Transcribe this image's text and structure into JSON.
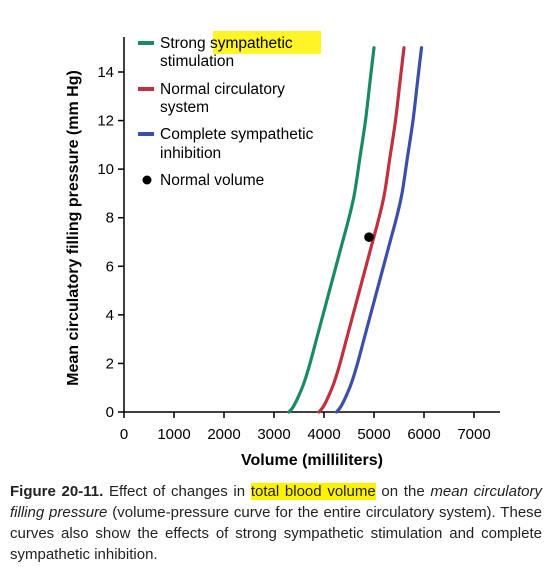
{
  "chart_data": {
    "type": "line",
    "xlabel": "Volume (milliliters)",
    "ylabel": "Mean circulatory filling pressure (mm Hg)",
    "xlim": [
      0,
      7000
    ],
    "ylim": [
      0,
      14
    ],
    "x_ticks": [
      0,
      1000,
      2000,
      3000,
      4000,
      5000,
      6000,
      7000
    ],
    "y_ticks": [
      0,
      2,
      4,
      6,
      8,
      10,
      12,
      14
    ],
    "grid": false,
    "legend_position": "top-left",
    "series": [
      {
        "name": "Strong sympathetic stimulation",
        "color": "#1a8a66",
        "x": [
          3300,
          3380,
          3480,
          3600,
          3720,
          3850,
          3980,
          4110,
          4240,
          4370,
          4500,
          4610,
          4720,
          4830,
          4920,
          5000
        ],
        "y": [
          0,
          0.2,
          0.6,
          1.2,
          2.0,
          3.0,
          4.0,
          5.0,
          6.0,
          7.0,
          8.0,
          9.0,
          10.5,
          12.0,
          13.6,
          15.0
        ]
      },
      {
        "name": "Normal circulatory system",
        "color": "#c0303f",
        "x": [
          3900,
          3980,
          4080,
          4200,
          4320,
          4450,
          4580,
          4710,
          4840,
          4970,
          5100,
          5210,
          5320,
          5430,
          5520,
          5600
        ],
        "y": [
          0,
          0.2,
          0.6,
          1.2,
          2.0,
          3.0,
          4.0,
          5.0,
          6.0,
          7.0,
          8.0,
          9.0,
          10.5,
          12.0,
          13.6,
          15.0
        ]
      },
      {
        "name": "Complete sympathetic inhibition",
        "color": "#3b4fa8",
        "x": [
          4250,
          4330,
          4430,
          4550,
          4670,
          4800,
          4930,
          5060,
          5190,
          5320,
          5450,
          5560,
          5670,
          5780,
          5870,
          5950
        ],
        "y": [
          0,
          0.2,
          0.6,
          1.2,
          2.0,
          3.0,
          4.0,
          5.0,
          6.0,
          7.0,
          8.0,
          9.0,
          10.5,
          12.0,
          13.6,
          15.0
        ]
      }
    ],
    "points": [
      {
        "name": "Normal volume",
        "x": 4900,
        "y": 7.2,
        "color": "#000000"
      }
    ]
  },
  "legend": {
    "items": [
      {
        "line1": "Strong sympathetic",
        "line2": "stimulation",
        "color": "#1a8a66",
        "marker": "line"
      },
      {
        "line1": "Normal circulatory",
        "line2": "system",
        "color": "#c0303f",
        "marker": "line"
      },
      {
        "line1": "Complete sympathetic",
        "line2": "inhibition",
        "color": "#3b4fa8",
        "marker": "line"
      },
      {
        "line1": "Normal volume",
        "line2": "",
        "color": "#000000",
        "marker": "dot"
      }
    ]
  },
  "caption": {
    "figure_label": "Figure 20-11.",
    "text_a": "Effect of changes in",
    "highlight": "total blood volume",
    "text_b": "on the",
    "italic_a": "mean circulatory filling pressure",
    "text_c": "(volume-pressure curve for the entire circulatory system). These curves also show the effects of strong sympathetic stimulation and complete sympathetic inhibition."
  }
}
